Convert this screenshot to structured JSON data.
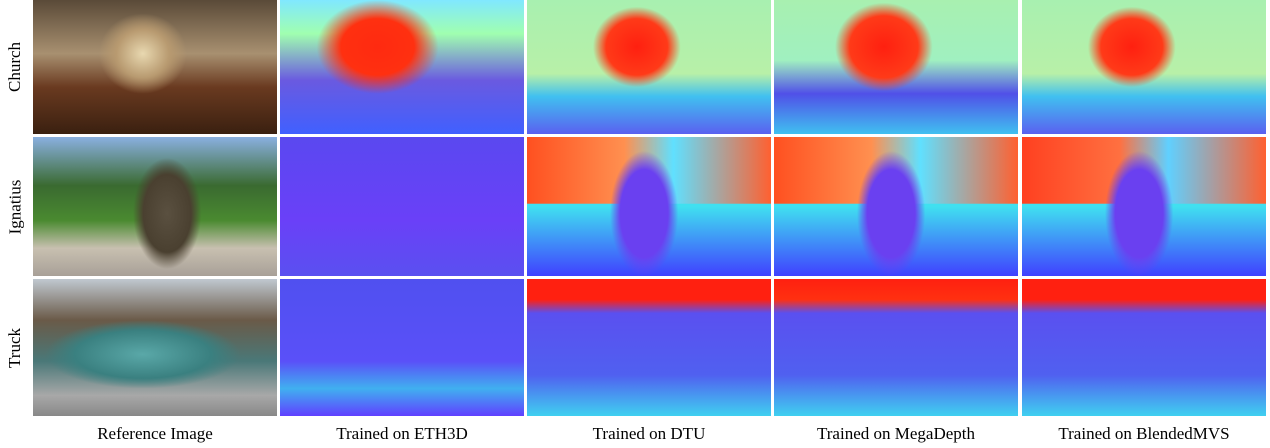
{
  "rows": [
    {
      "label": "Church"
    },
    {
      "label": "Ignatius"
    },
    {
      "label": "Truck"
    }
  ],
  "columns": [
    "Reference Image",
    "Trained on ETH3D",
    "Trained on DTU",
    "Trained on MegaDepth",
    "Trained on BlendedMVS"
  ]
}
